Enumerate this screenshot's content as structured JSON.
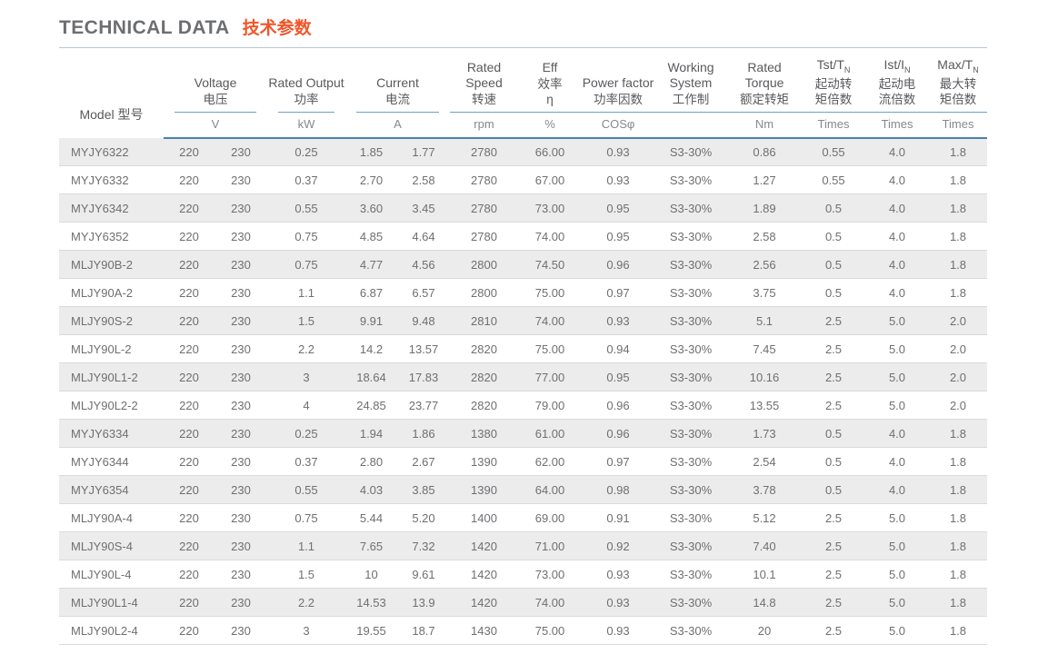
{
  "title": {
    "en": "TECHNICAL DATA",
    "zh": "技术参数"
  },
  "table": {
    "columns": [
      {
        "en": "Model 型号",
        "zh": "",
        "sub": "",
        "unit": "",
        "span": 1
      },
      {
        "en": "Voltage",
        "zh": "电压",
        "sub": "",
        "unit": "V",
        "span": 2
      },
      {
        "en": "Rated Output",
        "zh": "功率",
        "sub": "",
        "unit": "kW",
        "span": 1
      },
      {
        "en": "Current",
        "zh": "电流",
        "sub": "",
        "unit": "A",
        "span": 2
      },
      {
        "en": "Rated Speed",
        "zh": "转速",
        "sub": "",
        "unit": "rpm",
        "span": 1
      },
      {
        "en": "Eff",
        "zh": "效率\nη",
        "sub": "",
        "unit": "%",
        "span": 1
      },
      {
        "en": "Power factor",
        "zh": "功率因数",
        "sub": "",
        "unit": "COSφ",
        "span": 1
      },
      {
        "en": "Working System",
        "zh": "工作制",
        "sub": "",
        "unit": "",
        "span": 1
      },
      {
        "en": "Rated Torque",
        "zh": "额定转矩",
        "sub": "",
        "unit": "Nm",
        "span": 1
      },
      {
        "en": "Tst/T",
        "zh": "起动转\n矩倍数",
        "sub": "N",
        "unit": "Times",
        "span": 1
      },
      {
        "en": "Ist/I",
        "zh": "起动电\n流倍数",
        "sub": "N",
        "unit": "Times",
        "span": 1
      },
      {
        "en": "Max/T",
        "zh": "最大转\n矩倍数",
        "sub": "N",
        "unit": "Times",
        "span": 1
      }
    ],
    "rows": [
      [
        "MYJY6322",
        "220",
        "230",
        "0.25",
        "1.85",
        "1.77",
        "2780",
        "66.00",
        "0.93",
        "S3-30%",
        "0.86",
        "0.55",
        "4.0",
        "1.8"
      ],
      [
        "MYJY6332",
        "220",
        "230",
        "0.37",
        "2.70",
        "2.58",
        "2780",
        "67.00",
        "0.93",
        "S3-30%",
        "1.27",
        "0.55",
        "4.0",
        "1.8"
      ],
      [
        "MYJY6342",
        "220",
        "230",
        "0.55",
        "3.60",
        "3.45",
        "2780",
        "73.00",
        "0.95",
        "S3-30%",
        "1.89",
        "0.5",
        "4.0",
        "1.8"
      ],
      [
        "MYJY6352",
        "220",
        "230",
        "0.75",
        "4.85",
        "4.64",
        "2780",
        "74.00",
        "0.95",
        "S3-30%",
        "2.58",
        "0.5",
        "4.0",
        "1.8"
      ],
      [
        "MLJY90B-2",
        "220",
        "230",
        "0.75",
        "4.77",
        "4.56",
        "2800",
        "74.50",
        "0.96",
        "S3-30%",
        "2.56",
        "0.5",
        "4.0",
        "1.8"
      ],
      [
        "MLJY90A-2",
        "220",
        "230",
        "1.1",
        "6.87",
        "6.57",
        "2800",
        "75.00",
        "0.97",
        "S3-30%",
        "3.75",
        "0.5",
        "4.0",
        "1.8"
      ],
      [
        "MLJY90S-2",
        "220",
        "230",
        "1.5",
        "9.91",
        "9.48",
        "2810",
        "74.00",
        "0.93",
        "S3-30%",
        "5.1",
        "2.5",
        "5.0",
        "2.0"
      ],
      [
        "MLJY90L-2",
        "220",
        "230",
        "2.2",
        "14.2",
        "13.57",
        "2820",
        "75.00",
        "0.94",
        "S3-30%",
        "7.45",
        "2.5",
        "5.0",
        "2.0"
      ],
      [
        "MLJY90L1-2",
        "220",
        "230",
        "3",
        "18.64",
        "17.83",
        "2820",
        "77.00",
        "0.95",
        "S3-30%",
        "10.16",
        "2.5",
        "5.0",
        "2.0"
      ],
      [
        "MLJY90L2-2",
        "220",
        "230",
        "4",
        "24.85",
        "23.77",
        "2820",
        "79.00",
        "0.96",
        "S3-30%",
        "13.55",
        "2.5",
        "5.0",
        "2.0"
      ],
      [
        "MYJY6334",
        "220",
        "230",
        "0.25",
        "1.94",
        "1.86",
        "1380",
        "61.00",
        "0.96",
        "S3-30%",
        "1.73",
        "0.5",
        "4.0",
        "1.8"
      ],
      [
        "MYJY6344",
        "220",
        "230",
        "0.37",
        "2.80",
        "2.67",
        "1390",
        "62.00",
        "0.97",
        "S3-30%",
        "2.54",
        "0.5",
        "4.0",
        "1.8"
      ],
      [
        "MYJY6354",
        "220",
        "230",
        "0.55",
        "4.03",
        "3.85",
        "1390",
        "64.00",
        "0.98",
        "S3-30%",
        "3.78",
        "0.5",
        "4.0",
        "1.8"
      ],
      [
        "MLJY90A-4",
        "220",
        "230",
        "0.75",
        "5.44",
        "5.20",
        "1400",
        "69.00",
        "0.91",
        "S3-30%",
        "5.12",
        "2.5",
        "5.0",
        "1.8"
      ],
      [
        "MLJY90S-4",
        "220",
        "230",
        "1.1",
        "7.65",
        "7.32",
        "1420",
        "71.00",
        "0.92",
        "S3-30%",
        "7.40",
        "2.5",
        "5.0",
        "1.8"
      ],
      [
        "MLJY90L-4",
        "220",
        "230",
        "1.5",
        "10",
        "9.61",
        "1420",
        "73.00",
        "0.93",
        "S3-30%",
        "10.1",
        "2.5",
        "5.0",
        "1.8"
      ],
      [
        "MLJY90L1-4",
        "220",
        "230",
        "2.2",
        "14.53",
        "13.9",
        "1420",
        "74.00",
        "0.93",
        "S3-30%",
        "14.8",
        "2.5",
        "5.0",
        "1.8"
      ],
      [
        "MLJY90L2-4",
        "220",
        "230",
        "3",
        "19.55",
        "18.7",
        "1430",
        "75.00",
        "0.93",
        "S3-30%",
        "20",
        "2.5",
        "5.0",
        "1.8"
      ]
    ]
  },
  "colors": {
    "accent_orange": "#f0562a",
    "header_rule_blue": "#4a82ad",
    "group_underline_blue": "#6fa0c4",
    "row_shade_gray": "#ececec",
    "text_gray": "#6e6f72"
  }
}
